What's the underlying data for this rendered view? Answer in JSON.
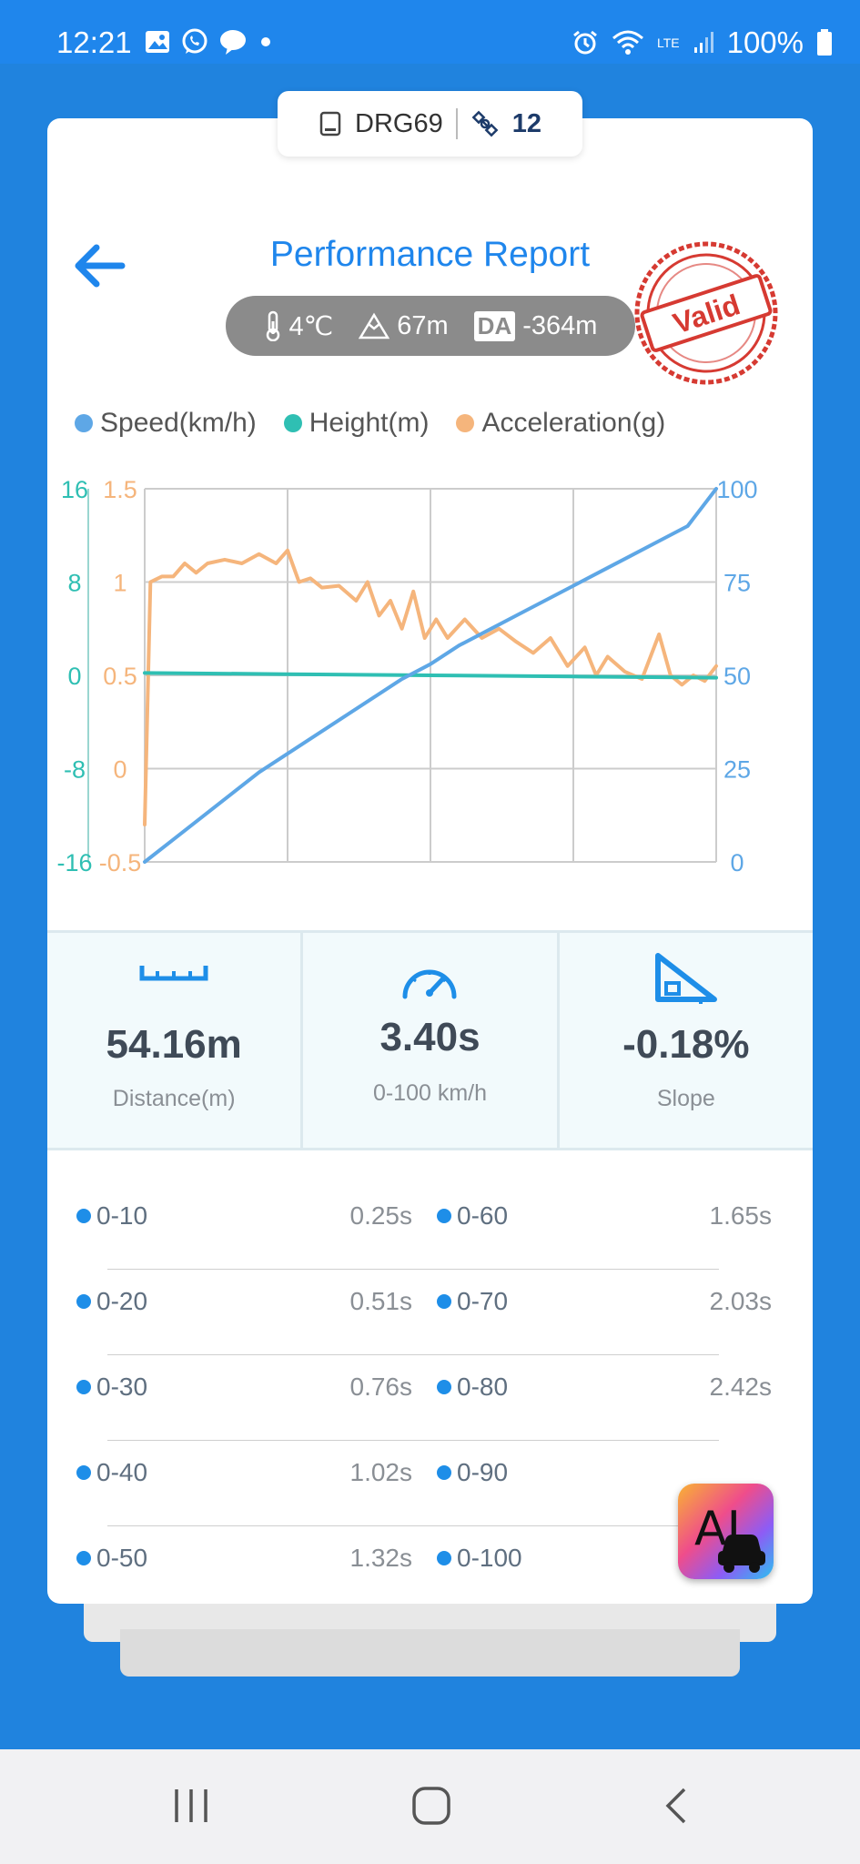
{
  "status_bar": {
    "time": "12:21",
    "battery": "100%",
    "network": "LTE"
  },
  "device": {
    "name": "DRG69",
    "satellites": "12"
  },
  "header": {
    "title": "Performance Report",
    "stamp_text": "Valid"
  },
  "conditions": {
    "temperature": "4℃",
    "altitude": "67m",
    "da_label": "DA",
    "density_altitude": "-364m"
  },
  "legend": [
    {
      "label": "Speed(km/h)",
      "color": "#5ea7e6"
    },
    {
      "label": "Height(m)",
      "color": "#2fbfb3"
    },
    {
      "label": "Acceleration(g)",
      "color": "#f5b57c"
    }
  ],
  "chart_data": {
    "type": "line",
    "title": "",
    "x_divisions": 4,
    "axes": {
      "height": {
        "ticks": [
          "16",
          "8",
          "0",
          "-8",
          "-16"
        ],
        "range": [
          -16,
          16
        ],
        "color": "#2fbfb3"
      },
      "acceleration": {
        "ticks": [
          "1.5",
          "1",
          "0.5",
          "0",
          "-0.5"
        ],
        "range": [
          -0.5,
          1.5
        ],
        "color": "#f5b57c"
      },
      "speed": {
        "ticks": [
          "100",
          "75",
          "50",
          "25",
          "0"
        ],
        "range": [
          0,
          100
        ],
        "color": "#5ea7e6"
      }
    },
    "series": [
      {
        "name": "Speed(km/h)",
        "color": "#5ea7e6",
        "axis": "speed",
        "x": [
          0,
          0.05,
          0.1,
          0.15,
          0.2,
          0.25,
          0.3,
          0.35,
          0.4,
          0.45,
          0.5,
          0.55,
          0.6,
          0.65,
          0.7,
          0.75,
          0.8,
          0.85,
          0.9,
          0.95,
          1.0
        ],
        "values": [
          0,
          6,
          12,
          18,
          24,
          29,
          34,
          39,
          44,
          49,
          53,
          58,
          62,
          66,
          70,
          74,
          78,
          82,
          86,
          90,
          100
        ]
      },
      {
        "name": "Height(m)",
        "color": "#2fbfb3",
        "axis": "height",
        "x": [
          0,
          0.25,
          0.5,
          0.75,
          1.0
        ],
        "values": [
          0.2,
          0.1,
          0.0,
          -0.1,
          -0.2
        ]
      },
      {
        "name": "Acceleration(g)",
        "color": "#f5b57c",
        "axis": "acceleration",
        "x": [
          0,
          0.01,
          0.03,
          0.05,
          0.07,
          0.09,
          0.11,
          0.14,
          0.17,
          0.2,
          0.23,
          0.25,
          0.27,
          0.29,
          0.31,
          0.34,
          0.37,
          0.39,
          0.41,
          0.43,
          0.45,
          0.47,
          0.49,
          0.51,
          0.53,
          0.56,
          0.59,
          0.62,
          0.65,
          0.68,
          0.71,
          0.74,
          0.77,
          0.79,
          0.81,
          0.84,
          0.87,
          0.9,
          0.92,
          0.94,
          0.96,
          0.98,
          1.0
        ],
        "values": [
          -0.3,
          1.0,
          1.03,
          1.03,
          1.1,
          1.05,
          1.1,
          1.12,
          1.1,
          1.15,
          1.1,
          1.17,
          1.0,
          1.02,
          0.97,
          0.98,
          0.9,
          1.0,
          0.82,
          0.9,
          0.75,
          0.95,
          0.7,
          0.8,
          0.7,
          0.8,
          0.7,
          0.75,
          0.68,
          0.62,
          0.7,
          0.55,
          0.65,
          0.5,
          0.6,
          0.52,
          0.48,
          0.72,
          0.5,
          0.45,
          0.5,
          0.47,
          0.55
        ]
      }
    ]
  },
  "metrics": [
    {
      "value": "54.16m",
      "label": "Distance(m)",
      "icon": "ruler-icon"
    },
    {
      "value": "3.40s",
      "label": "0-100 km/h",
      "icon": "speedometer-icon"
    },
    {
      "value": "-0.18%",
      "label": "Slope",
      "icon": "slope-icon"
    }
  ],
  "splits": [
    {
      "left_label": "0-10",
      "left_time": "0.25s",
      "right_label": "0-60",
      "right_time": "1.65s"
    },
    {
      "left_label": "0-20",
      "left_time": "0.51s",
      "right_label": "0-70",
      "right_time": "2.03s"
    },
    {
      "left_label": "0-30",
      "left_time": "0.76s",
      "right_label": "0-80",
      "right_time": "2.42s"
    },
    {
      "left_label": "0-40",
      "left_time": "1.02s",
      "right_label": "0-90",
      "right_time": ""
    },
    {
      "left_label": "0-50",
      "left_time": "1.32s",
      "right_label": "0-100",
      "right_time": ""
    }
  ],
  "fab": {
    "label": "AI"
  }
}
